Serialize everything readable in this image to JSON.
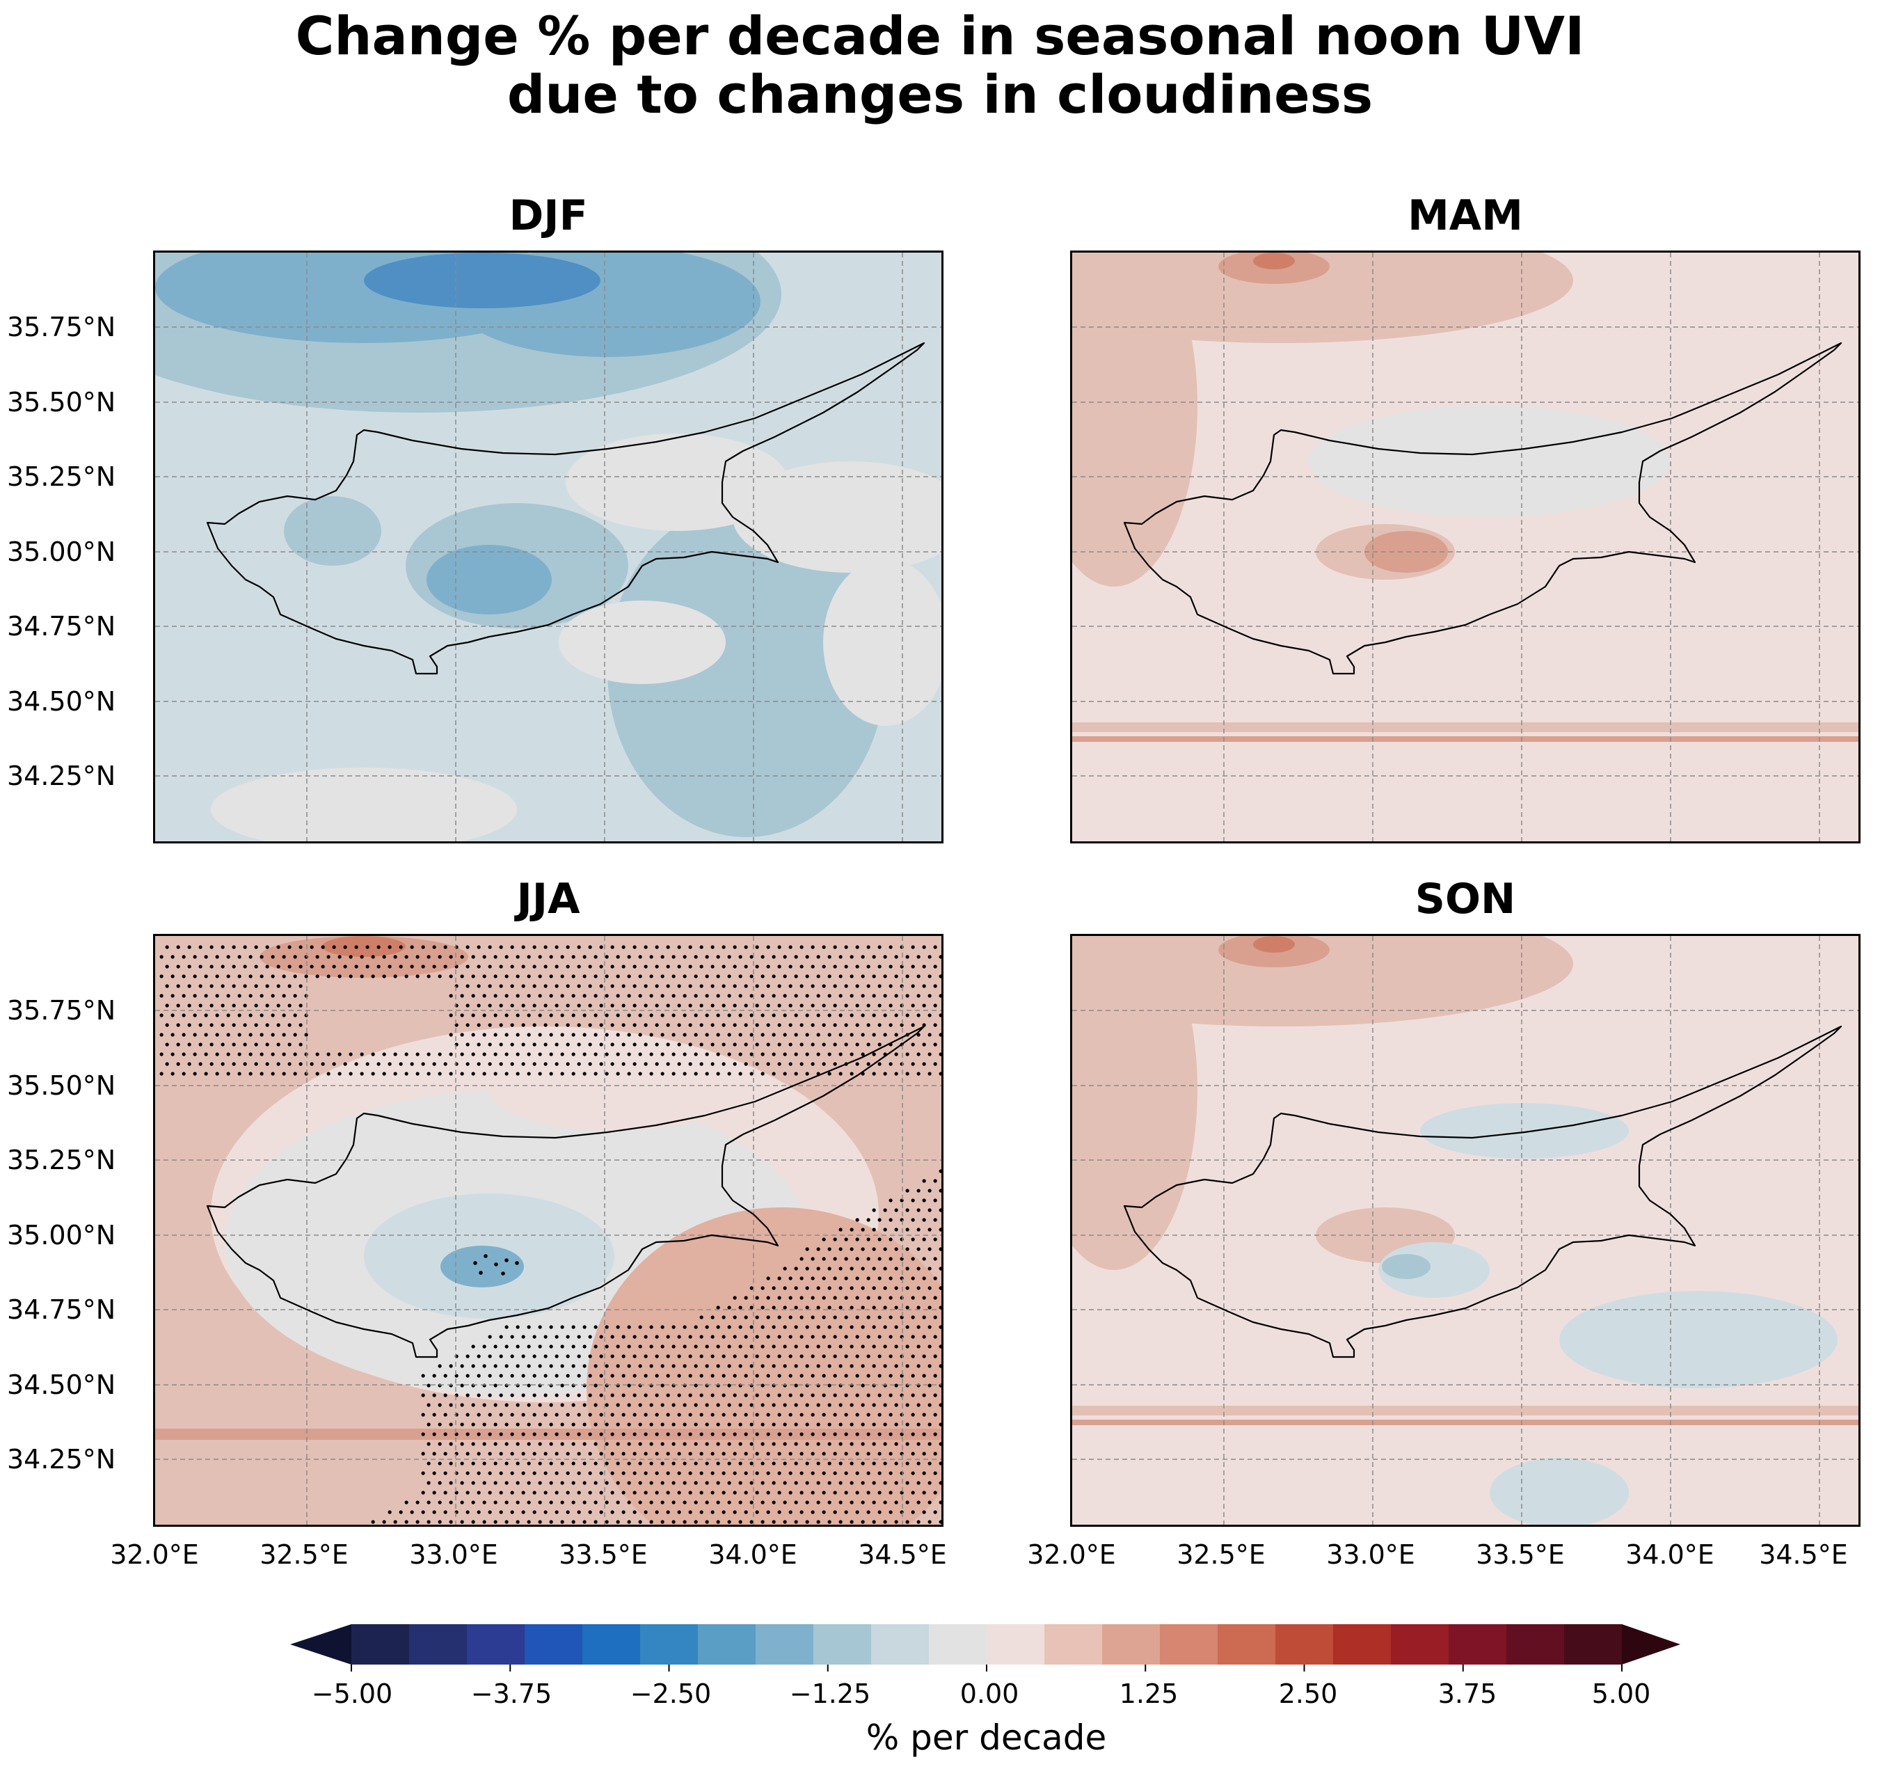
{
  "title_lines": [
    "Change % per decade in seasonal noon UVI",
    "due to changes in cloudiness"
  ],
  "panels": [
    {
      "title": "DJF",
      "sign": -1,
      "stipple": false
    },
    {
      "title": "MAM",
      "sign": 1,
      "stipple": false
    },
    {
      "title": "JJA",
      "sign": 1,
      "stipple": true
    },
    {
      "title": "SON",
      "sign": 1,
      "stipple": false
    }
  ],
  "y_ticks": [
    "35.75°N",
    "35.50°N",
    "35.25°N",
    "35.00°N",
    "34.75°N",
    "34.50°N",
    "34.25°N"
  ],
  "x_ticks": [
    "32.0°E",
    "32.5°E",
    "33.0°E",
    "33.5°E",
    "34.0°E",
    "34.5°E"
  ],
  "colorbar": {
    "ticks": [
      "−5.00",
      "−3.75",
      "−2.50",
      "−1.25",
      "0.00",
      "1.25",
      "2.50",
      "3.75",
      "5.00"
    ],
    "label": "% per decade",
    "colors": [
      "#1c2350",
      "#24306f",
      "#2b3c92",
      "#1f56b8",
      "#1e6fbf",
      "#3486c2",
      "#5a9dc5",
      "#7fb1cc",
      "#a6c6d4",
      "#c9d7de",
      "#e2e2e2",
      "#efdfdc",
      "#e8c2b6",
      "#dea493",
      "#d68671",
      "#cc6a52",
      "#bf4c36",
      "#ae2f25",
      "#981d25",
      "#7f1426",
      "#630f22",
      "#470c19"
    ],
    "min_color": "#0f1230",
    "max_color": "#2d0610"
  }
}
